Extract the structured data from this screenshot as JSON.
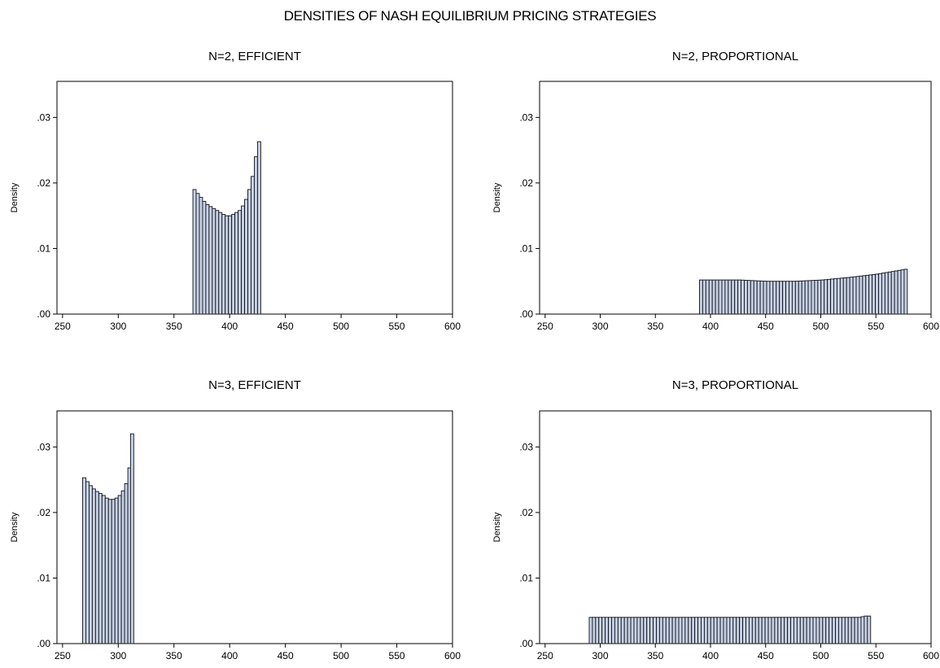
{
  "figure": {
    "title": "DENSITIES OF NASH EQUILIBRIUM PRICING STRATEGIES"
  },
  "chart_data": [
    {
      "type": "bar",
      "title": "N=2, EFFICIENT",
      "xlabel": "",
      "ylabel": "Density",
      "xlim": [
        245,
        600
      ],
      "ylim": [
        0,
        0.0355
      ],
      "xticks": [
        "250",
        "300",
        "350",
        "400",
        "450",
        "500",
        "550",
        "600"
      ],
      "yticks": [
        ".00",
        ".01",
        ".02",
        ".03"
      ],
      "bin_width": 2.9,
      "bins": [
        {
          "x": 367.0,
          "y": 0.019
        },
        {
          "x": 369.9,
          "y": 0.0184
        },
        {
          "x": 372.8,
          "y": 0.0178
        },
        {
          "x": 375.7,
          "y": 0.0172
        },
        {
          "x": 378.6,
          "y": 0.0167
        },
        {
          "x": 381.5,
          "y": 0.0164
        },
        {
          "x": 384.4,
          "y": 0.0161
        },
        {
          "x": 387.3,
          "y": 0.0158
        },
        {
          "x": 390.2,
          "y": 0.0155
        },
        {
          "x": 393.1,
          "y": 0.0152
        },
        {
          "x": 396.0,
          "y": 0.015
        },
        {
          "x": 398.9,
          "y": 0.015
        },
        {
          "x": 401.8,
          "y": 0.0152
        },
        {
          "x": 404.7,
          "y": 0.0155
        },
        {
          "x": 407.6,
          "y": 0.0158
        },
        {
          "x": 410.5,
          "y": 0.0165
        },
        {
          "x": 413.4,
          "y": 0.0175
        },
        {
          "x": 416.3,
          "y": 0.019
        },
        {
          "x": 419.2,
          "y": 0.021
        },
        {
          "x": 422.1,
          "y": 0.024
        },
        {
          "x": 425.0,
          "y": 0.0263
        }
      ]
    },
    {
      "type": "bar",
      "title": "N=2, PROPORTIONAL",
      "xlabel": "",
      "ylabel": "Density",
      "xlim": [
        245,
        600
      ],
      "ylim": [
        0,
        0.0355
      ],
      "xticks": [
        "250",
        "300",
        "350",
        "400",
        "450",
        "500",
        "550",
        "600"
      ],
      "yticks": [
        ".00",
        ".01",
        ".02",
        ".03"
      ],
      "bin_width": 2.9,
      "range": [
        390,
        578
      ],
      "density_profile": [
        {
          "x": 390,
          "y": 0.0052
        },
        {
          "x": 425,
          "y": 0.0052
        },
        {
          "x": 450,
          "y": 0.005
        },
        {
          "x": 475,
          "y": 0.005
        },
        {
          "x": 500,
          "y": 0.0052
        },
        {
          "x": 525,
          "y": 0.0056
        },
        {
          "x": 550,
          "y": 0.0061
        },
        {
          "x": 578,
          "y": 0.0069
        }
      ]
    },
    {
      "type": "bar",
      "title": "N=3, EFFICIENT",
      "xlabel": "",
      "ylabel": "Density",
      "xlim": [
        245,
        600
      ],
      "ylim": [
        0,
        0.0355
      ],
      "xticks": [
        "250",
        "300",
        "350",
        "400",
        "450",
        "500",
        "550",
        "600"
      ],
      "yticks": [
        ".00",
        ".01",
        ".02",
        ".03"
      ],
      "bin_width": 2.9,
      "bins": [
        {
          "x": 268.0,
          "y": 0.0253
        },
        {
          "x": 270.9,
          "y": 0.0247
        },
        {
          "x": 273.8,
          "y": 0.0241
        },
        {
          "x": 276.7,
          "y": 0.0236
        },
        {
          "x": 279.6,
          "y": 0.0232
        },
        {
          "x": 282.5,
          "y": 0.0229
        },
        {
          "x": 285.4,
          "y": 0.0226
        },
        {
          "x": 288.3,
          "y": 0.0222
        },
        {
          "x": 291.2,
          "y": 0.022
        },
        {
          "x": 294.1,
          "y": 0.022
        },
        {
          "x": 297.0,
          "y": 0.0222
        },
        {
          "x": 299.9,
          "y": 0.0226
        },
        {
          "x": 302.8,
          "y": 0.0233
        },
        {
          "x": 305.7,
          "y": 0.0244
        },
        {
          "x": 308.6,
          "y": 0.0268
        },
        {
          "x": 311.0,
          "y": 0.032
        }
      ]
    },
    {
      "type": "bar",
      "title": "N=3, PROPORTIONAL",
      "xlabel": "",
      "ylabel": "Density",
      "xlim": [
        245,
        600
      ],
      "ylim": [
        0,
        0.0355
      ],
      "xticks": [
        "250",
        "300",
        "350",
        "400",
        "450",
        "500",
        "550",
        "600"
      ],
      "yticks": [
        ".00",
        ".01",
        ".02",
        ".03"
      ],
      "bin_width": 2.9,
      "range": [
        290,
        545
      ],
      "density_profile": [
        {
          "x": 290,
          "y": 0.004
        },
        {
          "x": 535,
          "y": 0.004
        },
        {
          "x": 538,
          "y": 0.0042
        },
        {
          "x": 545,
          "y": 0.0042
        }
      ]
    }
  ]
}
